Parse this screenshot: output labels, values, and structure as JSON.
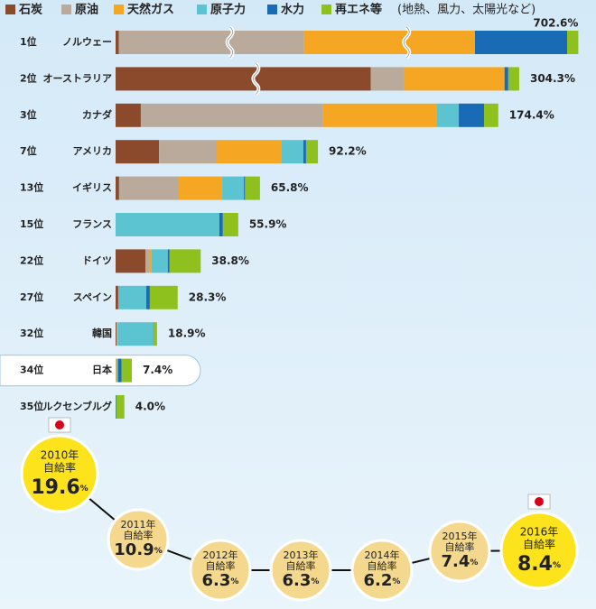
{
  "chart_data": [
    {
      "type": "stacked-bar",
      "legend_note": "(地熱、風力、太陽光など)",
      "categories": [
        "ノルウェー",
        "オーストラリア",
        "カナダ",
        "アメリカ",
        "イギリス",
        "フランス",
        "ドイツ",
        "スペイン",
        "韓国",
        "日本",
        "ルクセンブルグ"
      ],
      "ranks": [
        "1位",
        "2位",
        "3位",
        "7位",
        "13位",
        "15位",
        "22位",
        "27位",
        "32位",
        "34位",
        "35位"
      ],
      "series": [
        {
          "name": "石炭",
          "color": "#8b4a2b",
          "values": [
            1.5,
            236.6,
            11.5,
            19.8,
            1.6,
            0,
            13.6,
            1.2,
            0.4,
            0,
            0
          ]
        },
        {
          "name": "原油",
          "color": "#b9aa9b",
          "values": [
            340,
            15,
            83.1,
            26.3,
            27.2,
            0,
            1.6,
            0,
            0,
            0,
            0
          ]
        },
        {
          "name": "天然ガス",
          "color": "#f5a623",
          "values": [
            314,
            46,
            51.9,
            29.6,
            19.8,
            0,
            1.2,
            0,
            0.5,
            0.3,
            0
          ]
        },
        {
          "name": "原子力",
          "color": "#5bc4d0",
          "values": [
            0,
            0,
            9.9,
            9.9,
            9.9,
            47.3,
            7.4,
            12.8,
            16.3,
            0.8,
            0
          ]
        },
        {
          "name": "水力",
          "color": "#1a6bb5",
          "values": [
            42,
            1.7,
            11.5,
            1.2,
            0.5,
            1.6,
            0.8,
            1.6,
            0.2,
            1.6,
            0.2
          ]
        },
        {
          "name": "再エネ等",
          "color": "#8ec11e",
          "values": [
            5.1,
            5,
            6.5,
            5.4,
            6.8,
            7.0,
            14.2,
            12.7,
            1.5,
            4.7,
            3.8
          ]
        }
      ],
      "totals": [
        702.6,
        304.3,
        174.4,
        92.2,
        65.8,
        55.9,
        38.8,
        28.3,
        18.9,
        7.4,
        4.0
      ],
      "value_labels": [
        "702.6%",
        "304.3%",
        "174.4%",
        "92.2%",
        "65.8%",
        "55.9%",
        "38.8%",
        "28.3%",
        "18.9%",
        "7.4%",
        "4.0%"
      ],
      "breaks": [
        [
          1,
          2
        ],
        [
          0
        ],
        [],
        [],
        [],
        [],
        [],
        [],
        [],
        [],
        []
      ],
      "highlight_category": 9
    },
    {
      "type": "timeline",
      "years": [
        "2010年",
        "2011年",
        "2012年",
        "2013年",
        "2014年",
        "2015年",
        "2016年"
      ],
      "label": "自給率",
      "unit": "%",
      "values": [
        19.6,
        10.9,
        6.3,
        6.3,
        6.2,
        7.4,
        8.4
      ],
      "flagged": [
        true,
        false,
        false,
        false,
        false,
        false,
        true
      ]
    }
  ]
}
